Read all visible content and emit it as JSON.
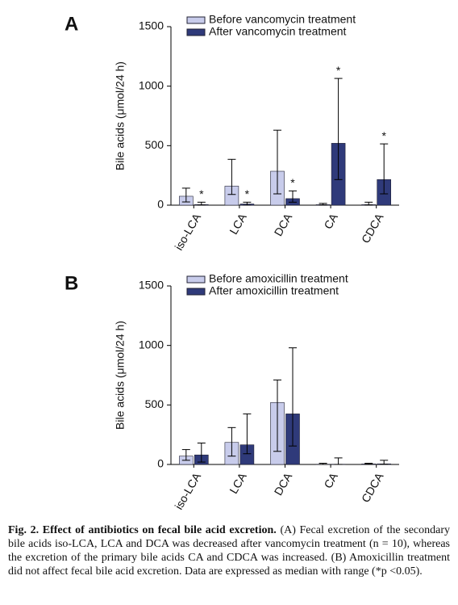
{
  "chart_data": [
    {
      "type": "bar",
      "panel": "A",
      "y_label": "Bile acids (μmol/24 h)",
      "categories": [
        "iso-LCA",
        "LCA",
        "DCA",
        "CA",
        "CDCA"
      ],
      "series": [
        {
          "name": "Before vancomycin treatment",
          "color": "#c8cceb",
          "values": [
            75,
            160,
            285,
            5,
            5
          ],
          "error_low": [
            27,
            90,
            95,
            0,
            0
          ],
          "error_high": [
            143,
            385,
            630,
            15,
            25
          ]
        },
        {
          "name": "After vancomycin treatment",
          "color": "#2f3a7a",
          "values": [
            5,
            10,
            55,
            520,
            215
          ],
          "error_low": [
            0,
            0,
            25,
            215,
            95
          ],
          "error_high": [
            25,
            25,
            120,
            1065,
            515
          ]
        }
      ],
      "annotations": [
        "*",
        "*",
        "*",
        "*",
        "*"
      ],
      "ylim": [
        0,
        1500
      ],
      "yticks": [
        0,
        500,
        1000,
        1500
      ]
    },
    {
      "type": "bar",
      "panel": "B",
      "y_label": "Bile acids (μmol/24 h)",
      "categories": [
        "iso-LCA",
        "LCA",
        "DCA",
        "CA",
        "CDCA"
      ],
      "series": [
        {
          "name": "Before amoxicillin treatment",
          "color": "#c8cceb",
          "values": [
            70,
            185,
            520,
            2,
            5
          ],
          "error_low": [
            35,
            70,
            110,
            0,
            0
          ],
          "error_high": [
            125,
            310,
            710,
            10,
            10
          ]
        },
        {
          "name": "After amoxicillin treatment",
          "color": "#2f3a7a",
          "values": [
            80,
            165,
            425,
            2,
            5
          ],
          "error_low": [
            20,
            90,
            155,
            0,
            0
          ],
          "error_high": [
            180,
            425,
            980,
            55,
            35
          ]
        }
      ],
      "ylim": [
        0,
        1500
      ],
      "yticks": [
        0,
        500,
        1000,
        1500
      ]
    }
  ],
  "caption": {
    "label": "Fig. 2.",
    "heading": "Effect of antibiotics on fecal bile acid excretion.",
    "body": "(A) Fecal excretion of the secondary bile acids iso-LCA, LCA and DCA was decreased after vancomycin treatment (n = 10), whereas the excretion of the primary bile acids CA and CDCA was increased. (B) Amoxicillin treatment did not affect fecal bile acid excretion. Data are expressed as median with range (*p <0.05)."
  }
}
